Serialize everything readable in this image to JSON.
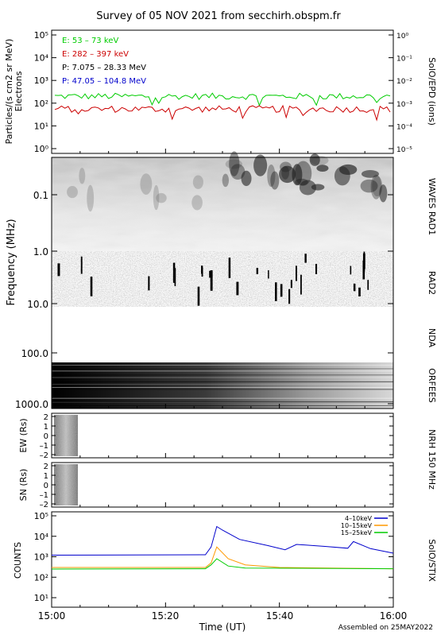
{
  "title": "Survey of 05 NOV 2021 from secchirh.obspm.fr",
  "footer": "Assembled on 25MAY2022",
  "xaxis": {
    "label": "Time (UT)",
    "ticks": [
      "15:00",
      "15:20",
      "15:40",
      "16:00"
    ]
  },
  "colors": {
    "green": "#00cc00",
    "red": "#cc0000",
    "black": "#000000",
    "blue": "#0000cc",
    "orange": "#ff9900"
  },
  "panels": {
    "epd": {
      "ylabel_left": "Particles/(s cm2 sr MeV)",
      "ylabel_left2": "Electrons",
      "ylabel_right": "SolO/EPD (ions)",
      "left_ticks": [
        "10⁵",
        "10⁴",
        "10³",
        "10²",
        "10¹",
        "10⁰"
      ],
      "right_ticks": [
        "10⁰",
        "10⁻¹",
        "10⁻²",
        "10⁻³",
        "10⁻⁴",
        "10⁻⁵"
      ],
      "legend": [
        {
          "label": "E: 53 – 73 keV",
          "color": "#00cc00"
        },
        {
          "label": "E: 282 – 397 keV",
          "color": "#cc0000"
        },
        {
          "label": "P: 7.075 – 28.33 MeV",
          "color": "#000000"
        },
        {
          "label": "P: 47.05 – 104.8 MeV",
          "color": "#0000cc"
        }
      ]
    },
    "radio": {
      "ylabel": "Frequency (MHz)",
      "ticks": [
        "0.1",
        "1.0",
        "10.0",
        "100.0",
        "1000.0"
      ],
      "labels": [
        "WAVES RAD1",
        "RAD2",
        "NDA",
        "ORFEES"
      ]
    },
    "nrh": {
      "ew_label": "EW (Rs)",
      "sn_label": "SN (Rs)",
      "ticks": [
        "2",
        "1",
        "0",
        "–1",
        "–2"
      ],
      "right_label": "NRH 150 MHz"
    },
    "stix": {
      "ylabel": "COUNTS",
      "ticks": [
        "10⁵",
        "10⁴",
        "10³",
        "10²",
        "10¹"
      ],
      "right_label": "SolO/STIX",
      "legend": [
        {
          "label": "4–10keV",
          "color": "#0000cc"
        },
        {
          "label": "10–15keV",
          "color": "#ff9900"
        },
        {
          "label": "15–25keV",
          "color": "#00cc00"
        }
      ]
    }
  },
  "chart_data": [
    {
      "type": "line",
      "title": "SolO/EPD",
      "xlim": [
        "15:00",
        "16:00"
      ],
      "ylim": [
        1,
        100000
      ],
      "yscale": "log",
      "series": [
        {
          "name": "E: 53 – 73 keV",
          "approx_level": 200
        },
        {
          "name": "E: 282 – 397 keV",
          "approx_level": 55
        }
      ]
    },
    {
      "type": "line",
      "title": "SolO/STIX",
      "xlim": [
        "15:00",
        "16:00"
      ],
      "ylim": [
        1,
        100000
      ],
      "yscale": "log",
      "series": [
        {
          "name": "4–10keV",
          "x": [
            "15:00",
            "15:27",
            "15:28",
            "15:29",
            "15:30",
            "15:33",
            "15:38",
            "15:41",
            "15:43",
            "15:48",
            "15:52",
            "15:53",
            "15:56",
            "16:00"
          ],
          "values": [
            1200,
            1250,
            3000,
            30000,
            20000,
            7000,
            3500,
            2200,
            4000,
            3200,
            2600,
            5500,
            2500,
            1500
          ]
        },
        {
          "name": "10–15keV",
          "x": [
            "15:00",
            "15:27",
            "15:28",
            "15:29",
            "15:31",
            "15:34",
            "15:40",
            "16:00"
          ],
          "values": [
            300,
            300,
            500,
            3000,
            800,
            400,
            300,
            260
          ]
        },
        {
          "name": "15–25keV",
          "x": [
            "15:00",
            "15:27",
            "15:28",
            "15:29",
            "15:31",
            "15:34",
            "16:00"
          ],
          "values": [
            250,
            260,
            400,
            800,
            350,
            280,
            260
          ]
        }
      ]
    }
  ]
}
